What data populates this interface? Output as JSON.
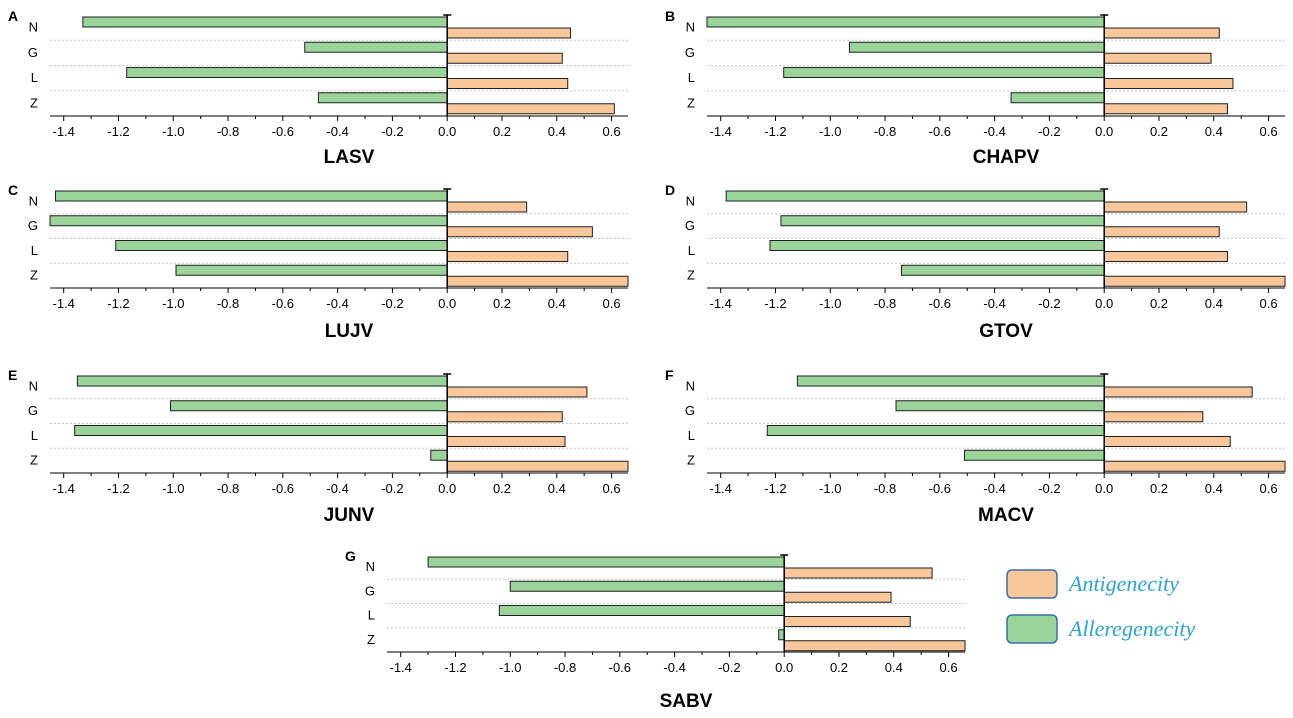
{
  "colors": {
    "antigenicity": "#f9c79a",
    "allergenicity": "#9ad49a",
    "bar_stroke": "#1f1f1f",
    "legend_text": "#2aa3dd",
    "legend_box_stroke": "#3a6fa8",
    "grid": "#c8c8c8"
  },
  "legend": {
    "items": [
      {
        "label": "Antigenecity",
        "color_key": "antigenicity"
      },
      {
        "label": "Alleregenecity",
        "color_key": "allergenicity"
      }
    ]
  },
  "chart_data": [
    {
      "type": "bar",
      "panel": "A",
      "title": "LASV",
      "orientation": "horizontal",
      "categories": [
        "N",
        "G",
        "L",
        "Z"
      ],
      "series": [
        {
          "name": "Antigenecity",
          "values": [
            0.45,
            0.42,
            0.44,
            0.61
          ]
        },
        {
          "name": "Alleregenecity",
          "values": [
            -1.33,
            -0.52,
            -1.17,
            -0.47
          ]
        }
      ],
      "xlim": [
        -1.45,
        0.66
      ],
      "xticks": [
        "-1.4",
        "-1.2",
        "-1.0",
        "-0.8",
        "-0.6",
        "-0.4",
        "-0.2",
        "0.0",
        "0.2",
        "0.4",
        "0.6"
      ]
    },
    {
      "type": "bar",
      "panel": "B",
      "title": "CHAPV",
      "orientation": "horizontal",
      "categories": [
        "N",
        "G",
        "L",
        "Z"
      ],
      "series": [
        {
          "name": "Antigenecity",
          "values": [
            0.42,
            0.39,
            0.47,
            0.45
          ]
        },
        {
          "name": "Alleregenecity",
          "values": [
            -1.45,
            -0.93,
            -1.17,
            -0.34
          ]
        }
      ],
      "xlim": [
        -1.45,
        0.66
      ],
      "xticks": [
        "-1.4",
        "-1.2",
        "-1.0",
        "-0.8",
        "-0.6",
        "-0.4",
        "-0.2",
        "0.0",
        "0.2",
        "0.4",
        "0.6"
      ]
    },
    {
      "type": "bar",
      "panel": "C",
      "title": "LUJV",
      "orientation": "horizontal",
      "categories": [
        "N",
        "G",
        "L",
        "Z"
      ],
      "series": [
        {
          "name": "Antigenecity",
          "values": [
            0.29,
            0.53,
            0.44,
            0.66
          ]
        },
        {
          "name": "Alleregenecity",
          "values": [
            -1.43,
            -1.45,
            -1.21,
            -0.99
          ]
        }
      ],
      "xlim": [
        -1.45,
        0.66
      ],
      "xticks": [
        "-1.4",
        "-1.2",
        "-1.0",
        "-0.8",
        "-0.6",
        "-0.4",
        "-0.2",
        "0.0",
        "0.2",
        "0.4",
        "0.6"
      ]
    },
    {
      "type": "bar",
      "panel": "D",
      "title": "GTOV",
      "orientation": "horizontal",
      "categories": [
        "N",
        "G",
        "L",
        "Z"
      ],
      "series": [
        {
          "name": "Antigenecity",
          "values": [
            0.52,
            0.42,
            0.45,
            0.66
          ]
        },
        {
          "name": "Alleregenecity",
          "values": [
            -1.38,
            -1.18,
            -1.22,
            -0.74
          ]
        }
      ],
      "xlim": [
        -1.45,
        0.66
      ],
      "xticks": [
        "-1.4",
        "-1.2",
        "-1.0",
        "-0.8",
        "-0.6",
        "-0.4",
        "-0.2",
        "0.0",
        "0.2",
        "0.4",
        "0.6"
      ]
    },
    {
      "type": "bar",
      "panel": "E",
      "title": "JUNV",
      "orientation": "horizontal",
      "categories": [
        "N",
        "G",
        "L",
        "Z"
      ],
      "series": [
        {
          "name": "Antigenecity",
          "values": [
            0.51,
            0.42,
            0.43,
            0.66
          ]
        },
        {
          "name": "Alleregenecity",
          "values": [
            -1.35,
            -1.01,
            -1.36,
            -0.06
          ]
        }
      ],
      "xlim": [
        -1.45,
        0.66
      ],
      "xticks": [
        "-1.4",
        "-1.2",
        "-1.0",
        "-0.8",
        "-0.6",
        "-0.4",
        "-0.2",
        "0.0",
        "0.2",
        "0.4",
        "0.6"
      ]
    },
    {
      "type": "bar",
      "panel": "F",
      "title": "MACV",
      "orientation": "horizontal",
      "categories": [
        "N",
        "G",
        "L",
        "Z"
      ],
      "series": [
        {
          "name": "Antigenecity",
          "values": [
            0.54,
            0.36,
            0.46,
            0.66
          ]
        },
        {
          "name": "Alleregenecity",
          "values": [
            -1.12,
            -0.76,
            -1.23,
            -0.51
          ]
        }
      ],
      "xlim": [
        -1.45,
        0.66
      ],
      "xticks": [
        "-1.4",
        "-1.2",
        "-1.0",
        "-0.8",
        "-0.6",
        "-0.4",
        "-0.2",
        "0.0",
        "0.2",
        "0.4",
        "0.6"
      ]
    },
    {
      "type": "bar",
      "panel": "G",
      "title": "SABV",
      "orientation": "horizontal",
      "categories": [
        "N",
        "G",
        "L",
        "Z"
      ],
      "series": [
        {
          "name": "Antigenecity",
          "values": [
            0.54,
            0.39,
            0.46,
            0.66
          ]
        },
        {
          "name": "Alleregenecity",
          "values": [
            -1.3,
            -1.0,
            -1.04,
            -0.02
          ]
        }
      ],
      "xlim": [
        -1.45,
        0.66
      ],
      "xticks": [
        "-1.4",
        "-1.2",
        "-1.0",
        "-0.8",
        "-0.6",
        "-0.4",
        "-0.2",
        "0.0",
        "0.2",
        "0.4",
        "0.6"
      ]
    }
  ]
}
